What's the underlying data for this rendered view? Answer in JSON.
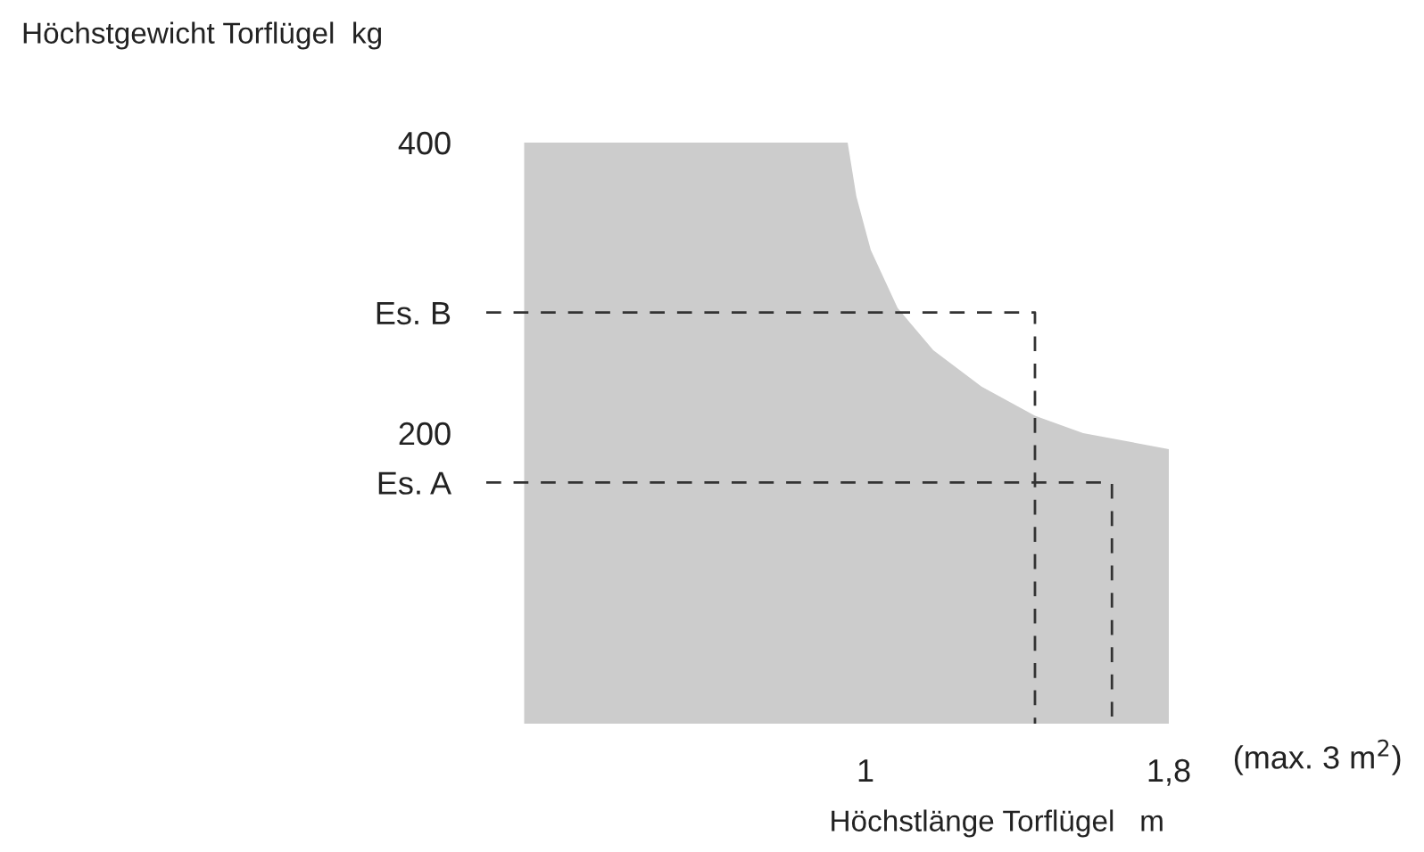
{
  "chart_data": {
    "type": "area",
    "title": "Höchstgewicht Torflügel  kg",
    "xlabel": "Höchstlänge Torflügel   m",
    "xlim": [
      0,
      1.8
    ],
    "ylim": [
      0,
      400
    ],
    "xticks": [
      {
        "value": 1,
        "label": "1"
      },
      {
        "value": 1.8,
        "label": "1,8"
      }
    ],
    "yticks": [
      {
        "value": 166,
        "label": "Es. A"
      },
      {
        "value": 200,
        "label": "200"
      },
      {
        "value": 283,
        "label": "Es. B"
      },
      {
        "value": 400,
        "label": "400"
      }
    ],
    "annotations": [
      "(max. 3 m$^{2}$)"
    ],
    "grid": false,
    "legend": false,
    "series": [
      {
        "color": "#cccccc",
        "x": [
          0.1,
          0.953,
          0.976,
          1.014,
          1.085,
          1.179,
          1.306,
          1.447,
          1.574,
          1.8
        ],
        "values": [
          400,
          400,
          363,
          326,
          286,
          257,
          232,
          212,
          200,
          189
        ]
      },
      {
        "type": "line",
        "color": "#333333",
        "line_style": "dashed",
        "x": [
          0,
          1.447,
          1.447
        ],
        "values": [
          283,
          283,
          0
        ]
      },
      {
        "type": "line",
        "color": "#333333",
        "line_style": "dashed",
        "x": [
          0,
          1.65,
          1.65
        ],
        "values": [
          166,
          166,
          0
        ]
      }
    ]
  }
}
